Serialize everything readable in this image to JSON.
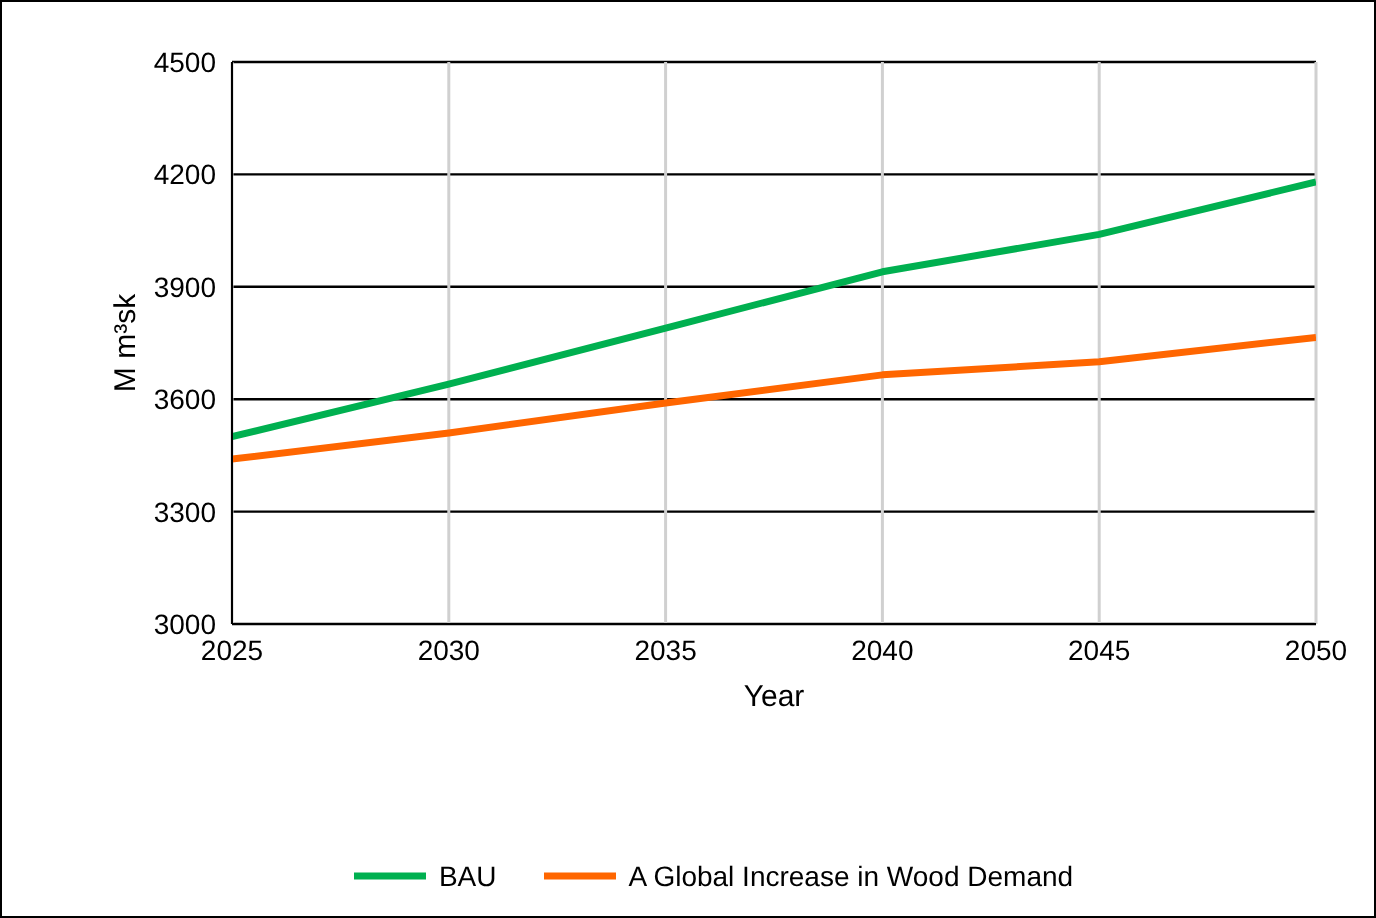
{
  "chart_data": {
    "type": "line",
    "xlabel": "Year",
    "ylabel": "M m³sk",
    "x": [
      2025,
      2030,
      2035,
      2040,
      2045,
      2050
    ],
    "xlim": [
      2025,
      2050
    ],
    "xticks": [
      2025,
      2030,
      2035,
      2040,
      2045,
      2050
    ],
    "ylim": [
      3000,
      4500
    ],
    "yticks": [
      3000,
      3300,
      3600,
      3900,
      4200,
      4500
    ],
    "grid": true,
    "legend": "bottom",
    "marker": "none",
    "line_style": "solid",
    "series": [
      {
        "name": "BAU",
        "color": "#00b050",
        "values": [
          3500,
          3640,
          3790,
          3940,
          4040,
          4180
        ]
      },
      {
        "name": "A Global Increase in Wood Demand",
        "color": "#ff6600",
        "values": [
          3440,
          3510,
          3590,
          3665,
          3700,
          3765
        ]
      }
    ]
  }
}
